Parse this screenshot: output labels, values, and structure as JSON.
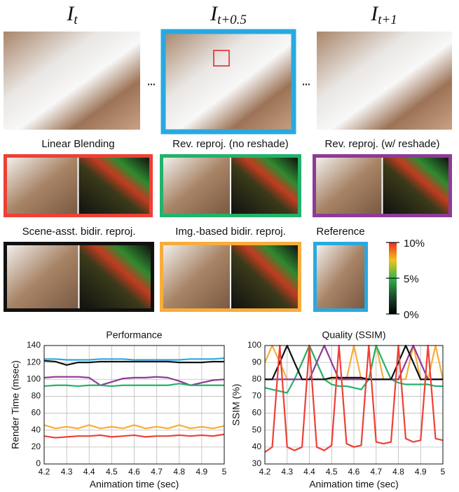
{
  "frames": [
    {
      "base": "I",
      "sub": "t"
    },
    {
      "base": "I",
      "sub": "t+0.5",
      "color": "#29a9e0"
    },
    {
      "base": "I",
      "sub": "t+1"
    }
  ],
  "ellipsis": "...",
  "panels": [
    {
      "label": "Linear Blending",
      "color": "#ee4035"
    },
    {
      "label": "Rev. reproj. (no reshade)",
      "color": "#22b26b"
    },
    {
      "label": "Rev. reproj. (w/ reshade)",
      "color": "#8e3a97"
    },
    {
      "label": "Scene-asst. bidir. reproj.",
      "color": "#111111"
    },
    {
      "label": "Img.-based bidir. reproj.",
      "color": "#f7ad3b"
    },
    {
      "label": "Reference",
      "color": "#29a9e0"
    }
  ],
  "colorbar": {
    "labels": [
      "10%",
      "5%",
      "0%"
    ]
  },
  "chart_data": [
    {
      "type": "line",
      "title": "Performance",
      "xlabel": "Animation time (sec)",
      "ylabel": "Render Time (msec)",
      "x": [
        4.2,
        4.25,
        4.3,
        4.35,
        4.4,
        4.45,
        4.5,
        4.55,
        4.6,
        4.65,
        4.7,
        4.75,
        4.8,
        4.85,
        4.9,
        4.95,
        5.0
      ],
      "xlim": [
        4.2,
        5
      ],
      "ylim": [
        0,
        140
      ],
      "xticks": [
        4.2,
        4.3,
        4.4,
        4.5,
        4.6,
        4.7,
        4.8,
        4.9,
        5
      ],
      "yticks": [
        0,
        20,
        40,
        60,
        80,
        100,
        120,
        140
      ],
      "grid": true,
      "series": [
        {
          "color": "#29a9e0",
          "values": [
            124,
            124,
            123,
            123,
            123,
            124,
            124,
            124,
            123,
            123,
            123,
            123,
            123,
            124,
            124,
            124,
            125
          ]
        },
        {
          "color": "#111111",
          "values": [
            122,
            121,
            117,
            120,
            120,
            121,
            121,
            121,
            121,
            121,
            121,
            121,
            120,
            120,
            120,
            121,
            121
          ]
        },
        {
          "color": "#8e3a97",
          "values": [
            102,
            103,
            103,
            103,
            102,
            93,
            97,
            101,
            102,
            102,
            103,
            102,
            98,
            93,
            96,
            99,
            100
          ]
        },
        {
          "color": "#22b26b",
          "values": [
            92,
            93,
            93,
            92,
            93,
            93,
            92,
            93,
            93,
            93,
            93,
            93,
            95,
            93,
            93,
            93,
            93
          ]
        },
        {
          "color": "#f7ad3b",
          "values": [
            46,
            42,
            44,
            42,
            46,
            42,
            44,
            42,
            46,
            42,
            44,
            42,
            46,
            42,
            44,
            42,
            45
          ]
        },
        {
          "color": "#ee4035",
          "values": [
            33,
            31,
            32,
            33,
            33,
            34,
            32,
            33,
            34,
            32,
            33,
            33,
            34,
            33,
            34,
            33,
            35
          ]
        }
      ]
    },
    {
      "type": "line",
      "title": "Quality (SSIM)",
      "xlabel": "Animation time (sec)",
      "ylabel": "SSIM (%)",
      "x": [
        4.2,
        4.233,
        4.267,
        4.3,
        4.333,
        4.367,
        4.4,
        4.433,
        4.467,
        4.5,
        4.533,
        4.567,
        4.6,
        4.633,
        4.667,
        4.7,
        4.733,
        4.767,
        4.8,
        4.833,
        4.867,
        4.9,
        4.933,
        4.967,
        5.0
      ],
      "xlim": [
        4.2,
        5
      ],
      "ylim": [
        30,
        100
      ],
      "xticks": [
        4.2,
        4.3,
        4.4,
        4.5,
        4.6,
        4.7,
        4.8,
        4.9,
        5
      ],
      "yticks": [
        30,
        40,
        50,
        60,
        70,
        80,
        90,
        100
      ],
      "grid": true,
      "series": [
        {
          "color": "#f7ad3b",
          "values": [
            90,
            100,
            90,
            80,
            80,
            90,
            100,
            90,
            80,
            80,
            80,
            80,
            100,
            80,
            80,
            100,
            80,
            80,
            80,
            80,
            100,
            80,
            80,
            100,
            80
          ]
        },
        {
          "color": "#22b26b",
          "values": [
            75,
            74,
            73,
            72,
            80,
            90,
            100,
            90,
            80,
            77,
            76,
            76,
            75,
            74,
            80,
            100,
            90,
            80,
            78,
            77,
            77,
            77,
            77,
            76,
            76
          ]
        },
        {
          "color": "#8e3a97",
          "values": [
            80,
            80,
            80,
            80,
            80,
            80,
            80,
            90,
            100,
            90,
            80,
            80,
            80,
            80,
            80,
            80,
            80,
            80,
            80,
            90,
            100,
            90,
            80,
            80,
            80
          ]
        },
        {
          "color": "#111111",
          "values": [
            80,
            80,
            90,
            100,
            90,
            80,
            80,
            80,
            80,
            81,
            81,
            81,
            81,
            81,
            80,
            80,
            80,
            80,
            90,
            100,
            90,
            80,
            80,
            80,
            80
          ]
        },
        {
          "color": "#ee4035",
          "values": [
            37,
            40,
            100,
            40,
            38,
            40,
            100,
            40,
            38,
            41,
            100,
            42,
            40,
            41,
            100,
            43,
            42,
            43,
            100,
            45,
            43,
            44,
            100,
            45,
            44
          ]
        }
      ]
    }
  ]
}
